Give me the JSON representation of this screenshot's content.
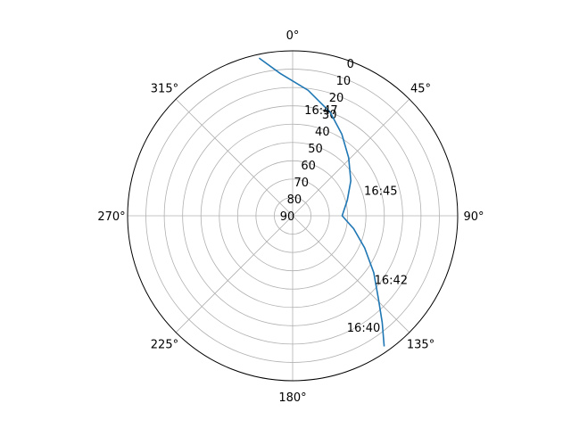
{
  "chart_data": {
    "type": "line",
    "projection": "polar",
    "theta_zero": "N",
    "theta_direction": "clockwise",
    "r_axis": {
      "values_represent": "elevation",
      "inverted": true,
      "range": [
        90,
        0
      ],
      "ticks": [
        "0",
        "10",
        "20",
        "30",
        "40",
        "50",
        "60",
        "70",
        "80",
        "90"
      ]
    },
    "theta_ticks": [
      "0°",
      "45°",
      "90°",
      "135°",
      "180°",
      "225°",
      "270°",
      "315°"
    ],
    "theta_tick_angles": [
      0,
      45,
      90,
      135,
      180,
      225,
      270,
      315
    ],
    "grid": true,
    "series": [
      {
        "color": "#1f77b4",
        "points": [
          {
            "azimuth": 145,
            "elevation": 3
          },
          {
            "azimuth": 140,
            "elevation": 14
          },
          {
            "azimuth": 134,
            "elevation": 25
          },
          {
            "azimuth": 125,
            "elevation": 36
          },
          {
            "azimuth": 114,
            "elevation": 47
          },
          {
            "azimuth": 102,
            "elevation": 56
          },
          {
            "azimuth": 90,
            "elevation": 63
          },
          {
            "azimuth": 74,
            "elevation": 59
          },
          {
            "azimuth": 59,
            "elevation": 53
          },
          {
            "azimuth": 44,
            "elevation": 46
          },
          {
            "azimuth": 31,
            "elevation": 38
          },
          {
            "azimuth": 20,
            "elevation": 30
          },
          {
            "azimuth": 7,
            "elevation": 21
          },
          {
            "azimuth": -5,
            "elevation": 12
          },
          {
            "azimuth": -12,
            "elevation": 2
          }
        ]
      }
    ],
    "annotations": [
      {
        "text": "16:40",
        "azimuth": 147.5,
        "elevation": 18
      },
      {
        "text": "16:42",
        "azimuth": 123,
        "elevation": 26
      },
      {
        "text": "16:45",
        "azimuth": 74,
        "elevation": 40
      },
      {
        "text": "16:47",
        "azimuth": 15,
        "elevation": 30
      }
    ]
  }
}
